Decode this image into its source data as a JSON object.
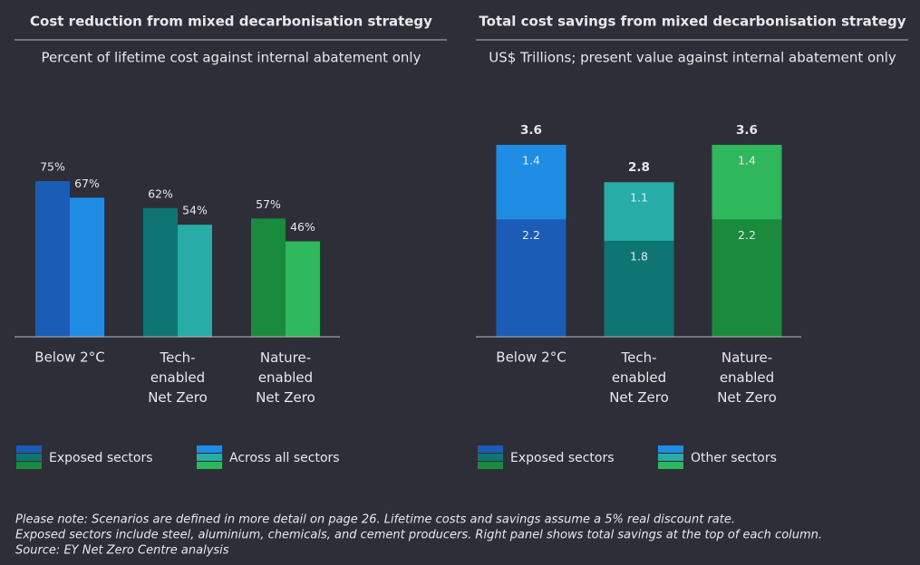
{
  "chart_data": [
    {
      "type": "bar",
      "title": "Cost reduction from mixed decarbonisation strategy",
      "subtitle": "Percent of lifetime cost against internal abatement only",
      "categories": [
        "Below 2°C",
        "Tech-\nenabled\nNet Zero",
        "Nature-\nenabled\nNet Zero"
      ],
      "series": [
        {
          "name": "Exposed sectors",
          "colors": [
            "#1b5cb6",
            "#0f7573",
            "#1a8a3c"
          ],
          "values": [
            75,
            62,
            57
          ],
          "value_labels": [
            "75%",
            "62%",
            "57%"
          ]
        },
        {
          "name": "Across all sectors",
          "colors": [
            "#1f8de4",
            "#27aca7",
            "#2fb85b"
          ],
          "values": [
            67,
            54,
            46
          ],
          "value_labels": [
            "67%",
            "54%",
            "46%"
          ]
        }
      ]
    },
    {
      "type": "stacked_bar",
      "title": "Total cost savings from mixed decarbonisation strategy",
      "subtitle": "US$ Trillions; present value against internal abatement only",
      "categories": [
        "Below 2°C",
        "Tech-\nenabled\nNet Zero",
        "Nature-\nenabled\nNet Zero"
      ],
      "series": [
        {
          "name": "Exposed sectors",
          "colors": [
            "#1b5cb6",
            "#0f7573",
            "#1a8a3c"
          ],
          "values": [
            2.2,
            1.8,
            2.2
          ]
        },
        {
          "name": "Other sectors",
          "colors": [
            "#1f8de4",
            "#27aca7",
            "#2fb85b"
          ],
          "values": [
            1.4,
            1.1,
            1.4
          ]
        }
      ],
      "totals": [
        3.6,
        2.8,
        3.6
      ]
    }
  ],
  "notes": [
    "Please note: Scenarios are defined in more detail on page 26. Lifetime costs and savings assume a 5% real discount rate.",
    "Exposed sectors include steel, aluminium, chemicals, and cement producers. Right panel shows total savings at the top of each column.",
    "Source: EY Net Zero Centre analysis"
  ]
}
